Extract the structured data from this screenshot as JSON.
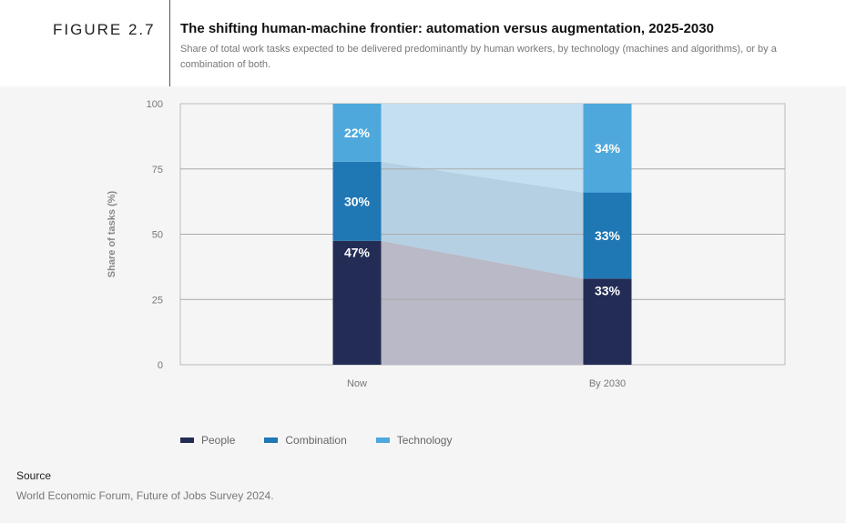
{
  "figure_label": "FIGURE 2.7",
  "title": "The shifting human-machine frontier: automation versus augmentation, 2025-2030",
  "subtitle": "Share of total work tasks expected to be delivered predominantly by human workers, by technology (machines and algorithms), or by a combination of both.",
  "source_heading": "Source",
  "source_text": "World Economic Forum, Future of Jobs Survey 2024.",
  "chart_data": {
    "type": "bar",
    "stacked": true,
    "categories": [
      "Now",
      "By 2030"
    ],
    "series": [
      {
        "name": "People",
        "values": [
          47,
          33
        ],
        "labels": [
          "47%",
          "33%"
        ],
        "color": "#232c55"
      },
      {
        "name": "Combination",
        "values": [
          30,
          33
        ],
        "labels": [
          "30%",
          "33%"
        ],
        "color": "#1f77b4"
      },
      {
        "name": "Technology",
        "values": [
          22,
          34
        ],
        "labels": [
          "22%",
          "34%"
        ],
        "color": "#4ea8dc"
      }
    ],
    "band_colors": [
      "#b9b9c7",
      "#b6d0e3",
      "#c4dff0"
    ],
    "ylabel": "Share of tasks (%)",
    "xlabel": "",
    "ylim": [
      0,
      100
    ],
    "yticks": [
      0,
      25,
      50,
      75,
      100
    ],
    "grid": true,
    "legend_position": "bottom-left"
  }
}
